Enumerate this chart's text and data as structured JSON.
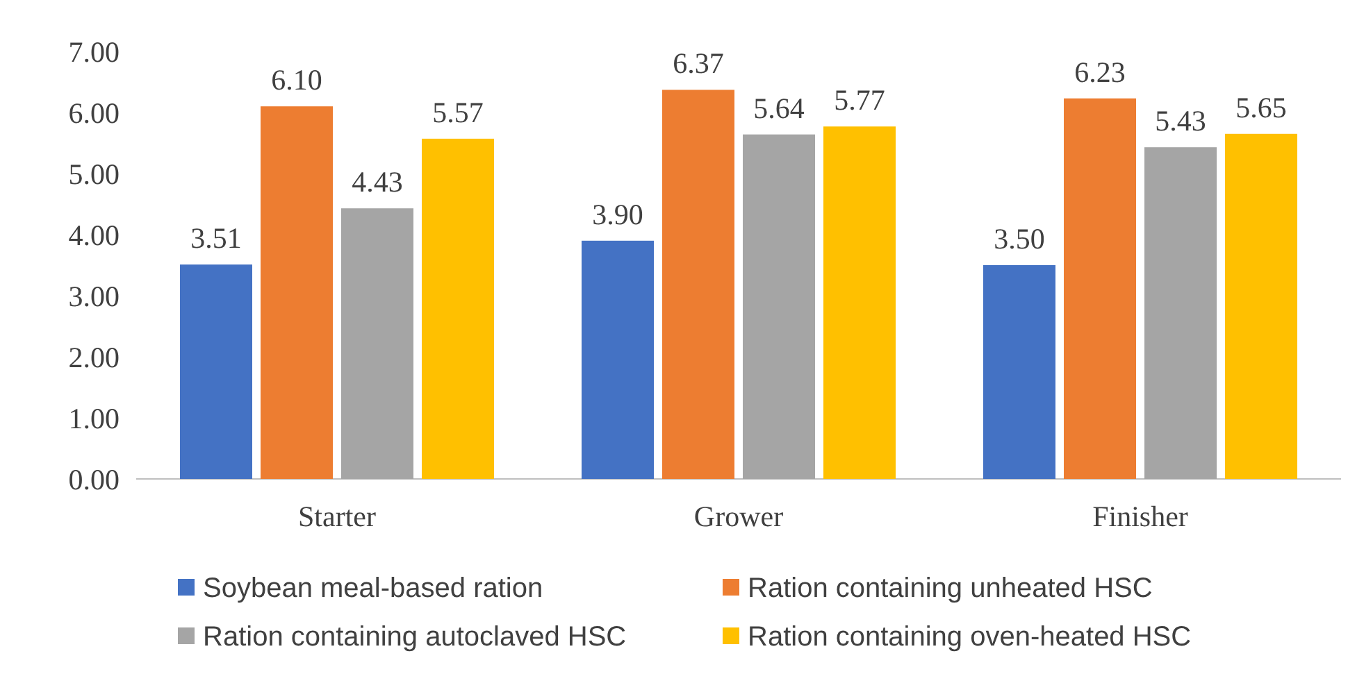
{
  "chart_data": {
    "type": "bar",
    "categories": [
      "Starter",
      "Grower",
      "Finisher"
    ],
    "series": [
      {
        "name": "Soybean meal-based ration",
        "color": "#4472c4",
        "values": [
          3.51,
          3.9,
          3.5
        ],
        "value_labels": [
          "3.51",
          "3.90",
          "3.50"
        ]
      },
      {
        "name": "Ration containing unheated HSC",
        "color": "#ed7d31",
        "values": [
          6.1,
          6.37,
          6.23
        ],
        "value_labels": [
          "6.10",
          "6.37",
          "6.23"
        ]
      },
      {
        "name": "Ration containing autoclaved HSC",
        "color": "#a5a5a5",
        "values": [
          4.43,
          5.64,
          5.43
        ],
        "value_labels": [
          "4.43",
          "5.64",
          "5.43"
        ]
      },
      {
        "name": "Ration containing oven-heated HSC",
        "color": "#ffc000",
        "values": [
          5.57,
          5.77,
          5.65
        ],
        "value_labels": [
          "5.57",
          "5.77",
          "5.65"
        ]
      }
    ],
    "ylim": [
      0,
      7
    ],
    "yticks": [
      {
        "value": 0,
        "label": "0.00"
      },
      {
        "value": 1,
        "label": "1.00"
      },
      {
        "value": 2,
        "label": "2.00"
      },
      {
        "value": 3,
        "label": "3.00"
      },
      {
        "value": 4,
        "label": "4.00"
      },
      {
        "value": 5,
        "label": "5.00"
      },
      {
        "value": 6,
        "label": "6.00"
      },
      {
        "value": 7,
        "label": "7.00"
      }
    ],
    "legend": "bottom"
  }
}
